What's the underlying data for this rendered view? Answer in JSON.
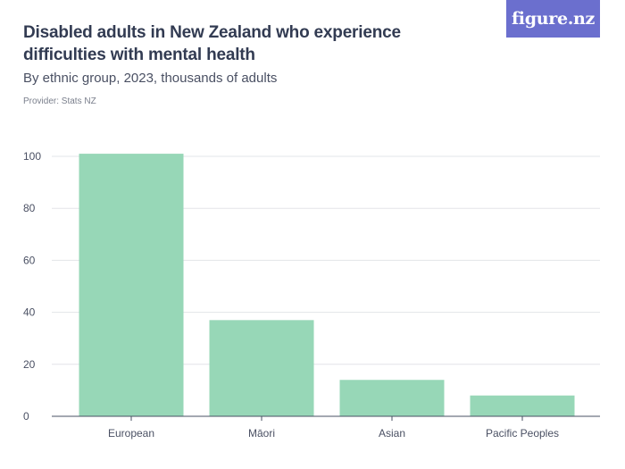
{
  "header": {
    "title": "Disabled adults in New Zealand who experience difficulties with mental health",
    "subtitle": "By ethnic group, 2023, thousands of adults",
    "provider": "Provider: Stats NZ"
  },
  "logo": {
    "text": "figure.nz",
    "background_color": "#6b6fce"
  },
  "chart_data": {
    "type": "bar",
    "title": "Disabled adults in New Zealand who experience difficulties with mental health",
    "subtitle": "By ethnic group, 2023, thousands of adults",
    "xlabel": "",
    "ylabel": "",
    "categories": [
      "European",
      "Māori",
      "Asian",
      "Pacific Peoples"
    ],
    "values": [
      101,
      37,
      14,
      8
    ],
    "ylim": [
      0,
      100
    ],
    "yticks": [
      0,
      20,
      40,
      60,
      80,
      100
    ],
    "grid": true,
    "legend": "none",
    "bar_color": "#97d7b7"
  }
}
